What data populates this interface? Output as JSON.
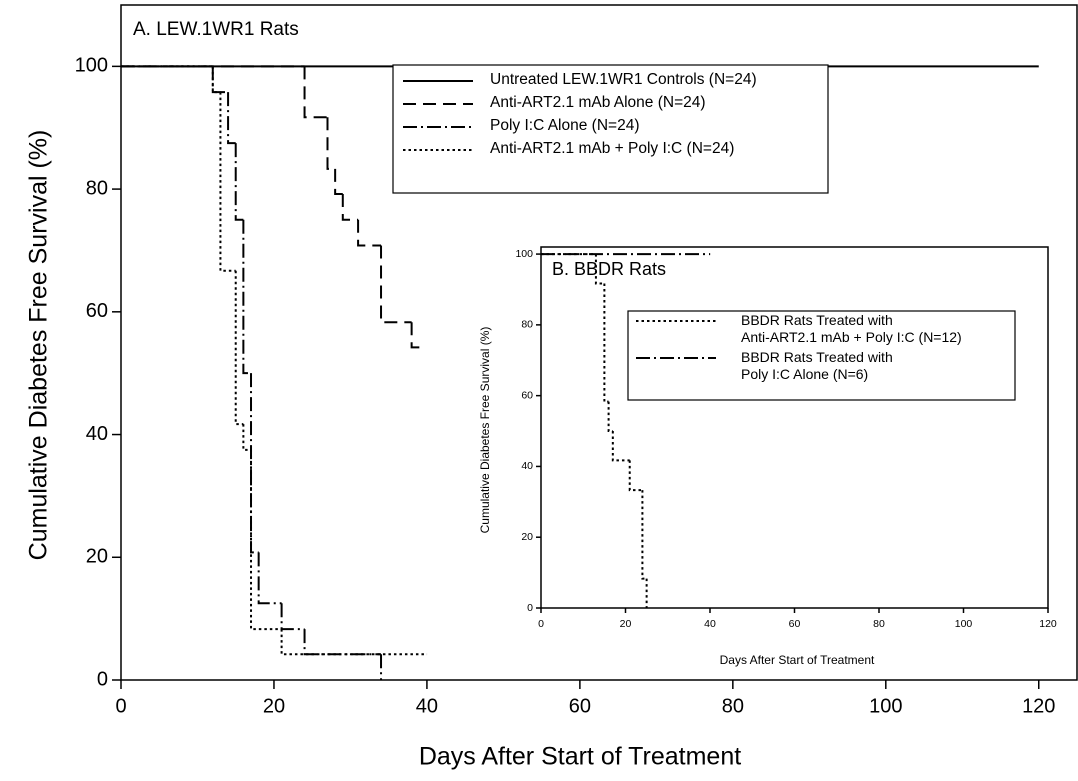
{
  "chart_data": [
    {
      "type": "step",
      "title": "A. LEW.1WR1 Rats",
      "xlabel": "Days After Start of Treatment",
      "ylabel": "Cumulative Diabetes Free Survival (%)",
      "xlim": [
        0,
        125
      ],
      "ylim": [
        0,
        110
      ],
      "xticks": [
        0,
        20,
        40,
        60,
        80,
        100,
        120
      ],
      "yticks": [
        0,
        20,
        40,
        60,
        80,
        100
      ],
      "series": [
        {
          "name": "Untreated LEW.1WR1 Controls (N=24)",
          "color": "#000000",
          "dash": "solid",
          "x": [
            0,
            120
          ],
          "values": [
            100,
            100
          ]
        },
        {
          "name": "Anti-ART2.1 mAb Alone (N=24)",
          "color": "#000000",
          "dash": "dashed",
          "x": [
            0,
            24,
            27,
            28,
            29,
            31,
            34,
            38,
            39
          ],
          "values": [
            100,
            91.7,
            83.3,
            79.2,
            75,
            70.8,
            58.3,
            54.2,
            54.2
          ]
        },
        {
          "name": "Poly I:C Alone (N=24)",
          "color": "#000000",
          "dash": "dashdot",
          "x": [
            0,
            12,
            14,
            15,
            16,
            17,
            18,
            21,
            24,
            34
          ],
          "values": [
            100,
            95.8,
            87.5,
            75,
            50,
            20.8,
            12.5,
            8.3,
            4.2,
            0
          ]
        },
        {
          "name": "Anti-ART2.1 mAb + Poly I:C (N=24)",
          "color": "#000000",
          "dash": "dotted",
          "x": [
            0,
            12,
            13,
            15,
            16,
            17,
            21,
            40
          ],
          "values": [
            100,
            95.8,
            66.7,
            41.7,
            37.5,
            8.3,
            4.2,
            4.2
          ]
        }
      ]
    },
    {
      "type": "step",
      "title": "B. BBDR Rats",
      "xlabel": "Days After Start of Treatment",
      "ylabel": "Cumulative Diabetes Free Survival (%)",
      "xlim": [
        0,
        120
      ],
      "ylim": [
        0,
        102
      ],
      "xticks": [
        0,
        20,
        40,
        60,
        80,
        100,
        120
      ],
      "yticks": [
        0,
        20,
        40,
        60,
        80,
        100
      ],
      "series": [
        {
          "name": "BBDR Rats Treated with\nAnti-ART2.1 mAb + Poly I:C (N=12)",
          "color": "#000000",
          "dash": "dotted",
          "x": [
            0,
            13,
            15,
            16,
            17,
            21,
            24,
            25
          ],
          "values": [
            100,
            91.7,
            58.3,
            50,
            41.7,
            33.3,
            8.3,
            0
          ]
        },
        {
          "name": "BBDR Rats Treated with\nPoly I:C Alone (N=6)",
          "color": "#000000",
          "dash": "dashdot",
          "x": [
            0,
            40
          ],
          "values": [
            100,
            100
          ]
        }
      ]
    }
  ]
}
